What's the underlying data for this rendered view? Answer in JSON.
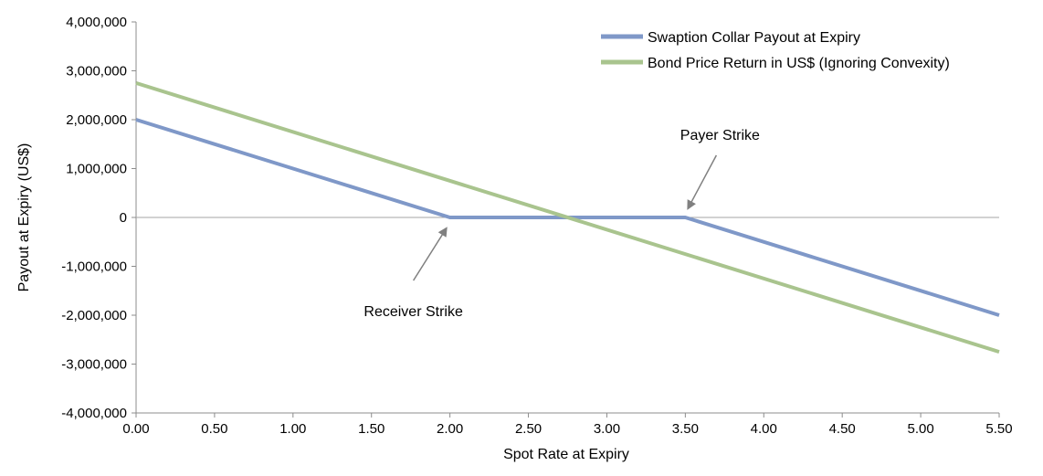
{
  "chart_data": {
    "type": "line",
    "title": "",
    "xlabel": "Spot Rate at Expiry",
    "ylabel": "Payout at Expiry (US$)",
    "xlim": [
      0,
      5.5
    ],
    "ylim": [
      -4000000,
      4000000
    ],
    "x_ticks": [
      "0.00",
      "0.50",
      "1.00",
      "1.50",
      "2.00",
      "2.50",
      "3.00",
      "3.50",
      "4.00",
      "4.50",
      "5.00",
      "5.50"
    ],
    "y_ticks": [
      "4,000,000",
      "3,000,000",
      "2,000,000",
      "1,000,000",
      "0",
      "-1,000,000",
      "-2,000,000",
      "-3,000,000",
      "-4,000,000"
    ],
    "grid": false,
    "legend_position": "top-right",
    "series": [
      {
        "name": "Swaption Collar Payout at Expiry",
        "color": "#7f98c8",
        "points": [
          [
            0,
            2000000
          ],
          [
            2.0,
            0
          ],
          [
            3.5,
            0
          ],
          [
            5.5,
            -2000000
          ]
        ]
      },
      {
        "name": "Bond Price Return in US$ (Ignoring Convexity)",
        "color": "#a9c48e",
        "points": [
          [
            0,
            2750000
          ],
          [
            5.5,
            -2750000
          ]
        ]
      }
    ],
    "annotations": [
      {
        "text": "Receiver Strike",
        "x": 2.0,
        "y": 0
      },
      {
        "text": "Payer Strike",
        "x": 3.5,
        "y": 0
      }
    ]
  }
}
